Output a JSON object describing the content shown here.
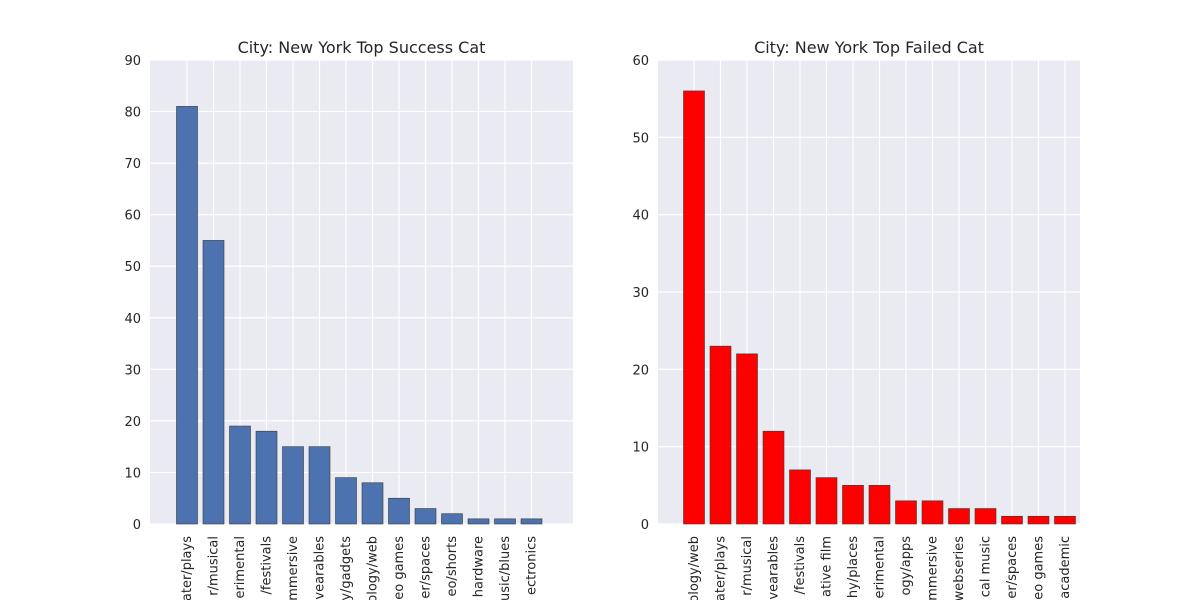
{
  "chart_data": [
    {
      "type": "bar",
      "title": "City: New York Top Success Cat",
      "xlabel": "",
      "ylabel": "",
      "ylim": [
        0,
        90
      ],
      "yticks": [
        0,
        10,
        20,
        30,
        40,
        50,
        60,
        70,
        80,
        90
      ],
      "grid": true,
      "bar_color": "#4c72b0",
      "background_color": "#eaeaf2",
      "categories": [
        "ater/plays",
        "r/musical",
        "erimental",
        "/festivals",
        "mmersive",
        "vearables",
        "y/gadgets",
        "ology/web",
        "eo games",
        "er/spaces",
        "eo/shorts",
        "hardware",
        "usic/blues",
        "ectronics"
      ],
      "values": [
        81,
        55,
        19,
        18,
        15,
        15,
        9,
        8,
        5,
        3,
        2,
        1,
        1,
        1
      ]
    },
    {
      "type": "bar",
      "title": "City: New York Top Failed Cat",
      "xlabel": "",
      "ylabel": "",
      "ylim": [
        0,
        60
      ],
      "yticks": [
        0,
        10,
        20,
        30,
        40,
        50,
        60
      ],
      "grid": true,
      "bar_color": "#ff0000",
      "background_color": "#eaeaf2",
      "categories": [
        "ology/web",
        "ater/plays",
        "r/musical",
        "vearables",
        "/festivals",
        "ative film",
        "hy/places",
        "erimental",
        "ogy/apps",
        "mmersive",
        "webseries",
        "cal music",
        "er/spaces",
        "eo games",
        "academic"
      ],
      "values": [
        56,
        23,
        22,
        12,
        7,
        6,
        5,
        5,
        3,
        3,
        2,
        2,
        1,
        1,
        1
      ]
    }
  ]
}
